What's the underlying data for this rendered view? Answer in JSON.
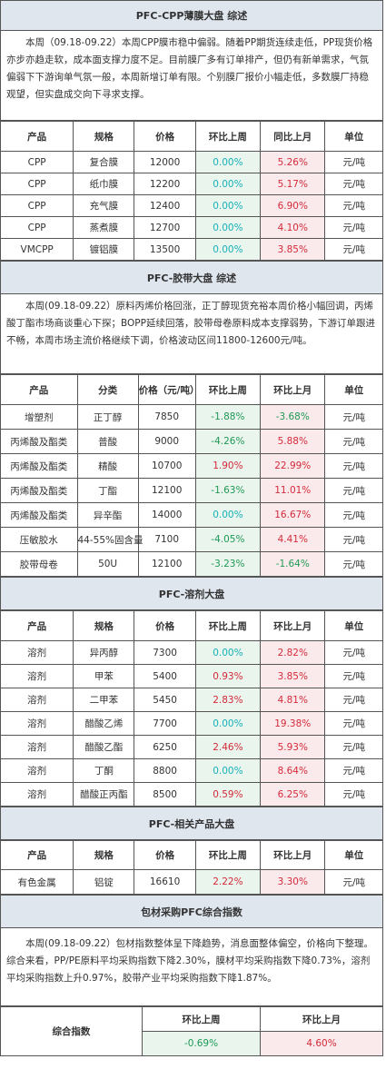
{
  "cpp": {
    "title": "PFC-CPP薄膜大盘 综述",
    "summary": "本周（09.18-09.22）本周CPP膜市稳中偏弱。随着PP期货连续走低，PP现货价格亦步亦趋走软，成本面支撑力度不足。目前膜厂多有订单排产，但仍有新单需求，气氛偏弱下下游询单气氛一般，本周新增订单有限。个别膜厂报价小幅走低，多数膜厂持稳观望，但实盘成交向下寻求支撑。",
    "headers": [
      "产品",
      "规格",
      "价格",
      "环比上周",
      "同比上月",
      "单位"
    ],
    "rows": [
      [
        "CPP",
        "复合膜",
        "12000",
        "0.00%",
        "5.26%",
        "元/吨"
      ],
      [
        "CPP",
        "纸巾膜",
        "12200",
        "0.00%",
        "5.17%",
        "元/吨"
      ],
      [
        "CPP",
        "充气膜",
        "12400",
        "0.00%",
        "6.90%",
        "元/吨"
      ],
      [
        "CPP",
        "蒸煮膜",
        "12700",
        "0.00%",
        "4.10%",
        "元/吨"
      ],
      [
        "VMCPP",
        "镀铝膜",
        "13500",
        "0.00%",
        "3.85%",
        "元/吨"
      ]
    ]
  },
  "tape": {
    "title": "PFC-胶带大盘 综述",
    "summary": "本周(09.18-09.22）原料丙烯价格回涨，正丁醇现货充裕本周价格小幅回调，丙烯酸丁酯市场商谈重心下探；BOPP延续回落，胶带母卷原料成本支撑弱势，下游订单跟进不畅，本周市场主流价格继续下调，价格波动区间11800-12600元/吨。",
    "headers": [
      "产品",
      "分类",
      "价格（元/吨）",
      "环比上周",
      "环比上月",
      "单位"
    ],
    "rows": [
      [
        "增塑剂",
        "正丁醇",
        "7850",
        "-1.88%",
        "-3.68%",
        "元/吨"
      ],
      [
        "丙烯酸及酯类",
        "普酸",
        "9000",
        "-4.26%",
        "5.88%",
        "元/吨"
      ],
      [
        "丙烯酸及酯类",
        "精酸",
        "10700",
        "1.90%",
        "22.99%",
        "元/吨"
      ],
      [
        "丙烯酸及酯类",
        "丁酯",
        "12100",
        "-1.63%",
        "11.01%",
        "元/吨"
      ],
      [
        "丙烯酸及酯类",
        "异辛酯",
        "14000",
        "0.00%",
        "16.67%",
        "元/吨"
      ],
      [
        "压敏胶水",
        "44-55%固含量",
        "7100",
        "-4.05%",
        "4.41%",
        "元/吨"
      ],
      [
        "胶带母卷",
        "50U",
        "12100",
        "-3.23%",
        "-1.64%",
        "元/吨"
      ]
    ]
  },
  "solvent": {
    "title": "PFC-溶剂大盘",
    "headers": [
      "产品",
      "规格",
      "价格",
      "环比上周",
      "环比上月",
      "单位"
    ],
    "rows": [
      [
        "溶剂",
        "异丙醇",
        "7300",
        "0.00%",
        "2.82%",
        "元/吨"
      ],
      [
        "溶剂",
        "甲苯",
        "5400",
        "0.93%",
        "3.85%",
        "元/吨"
      ],
      [
        "溶剂",
        "二甲苯",
        "5450",
        "2.83%",
        "4.81%",
        "元/吨"
      ],
      [
        "溶剂",
        "醋酸乙烯",
        "7700",
        "0.00%",
        "19.38%",
        "元/吨"
      ],
      [
        "溶剂",
        "醋酸乙酯",
        "6250",
        "2.46%",
        "5.93%",
        "元/吨"
      ],
      [
        "溶剂",
        "丁酮",
        "8800",
        "0.00%",
        "8.64%",
        "元/吨"
      ],
      [
        "溶剂",
        "醋酸正丙酯",
        "8500",
        "0.59%",
        "6.25%",
        "元/吨"
      ]
    ]
  },
  "related": {
    "title": "PFC-相关产品大盘",
    "headers": [
      "产品",
      "规格",
      "价格",
      "环比上周",
      "环比上月",
      "单位"
    ],
    "rows": [
      [
        "有色金属",
        "铝锭",
        "16610",
        "2.22%",
        "3.30%",
        "元/吨"
      ]
    ]
  },
  "index": {
    "title": "包材采购PFC综合指数",
    "summary": "本周(09.18-09.22）包材指数整体呈下降趋势，消息面整体偏空，价格向下整理。综合来看，PP/PE原料平均采购指数下降2.30%，膜材平均采购指数下降0.73%，溶剂平均采购指数上升0.97%，胶带产业平均采购指数下降1.87%。",
    "label": "综合指数",
    "wk_header": "环比上周",
    "mo_header": "环比上月",
    "wk_value": "-0.69%",
    "mo_value": "4.60%"
  },
  "colors": {
    "positive": "#d42a3a",
    "negative": "#1f9a55",
    "zero": "#16b2b7",
    "title_bg": "#dfe6ee"
  }
}
